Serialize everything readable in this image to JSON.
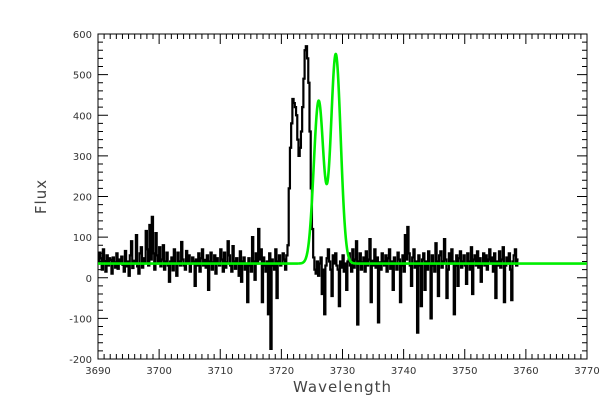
{
  "chart_data": {
    "type": "line",
    "xlabel": "Wavelength",
    "ylabel": "Flux",
    "xlim": [
      3690,
      3770
    ],
    "ylim": [
      -200,
      600
    ],
    "x_ticks": [
      "3690",
      "3700",
      "3710",
      "3720",
      "3730",
      "3740",
      "3750",
      "3760",
      "3770"
    ],
    "y_ticks": [
      "-200",
      "-100",
      "0",
      "100",
      "200",
      "300",
      "400",
      "500",
      "600"
    ],
    "x_minor_step": 1,
    "y_minor_step": 20,
    "grid": false,
    "legend": "none",
    "series": [
      {
        "style": "histogram-step",
        "color": "#000000",
        "x_start": 3690,
        "x_step": 0.2,
        "values": [
          35,
          62,
          48,
          20,
          70,
          41,
          15,
          55,
          30,
          48,
          44,
          10,
          50,
          38,
          25,
          60,
          22,
          45,
          35,
          52,
          32,
          15,
          66,
          28,
          40,
          5,
          55,
          90,
          24,
          42,
          38,
          105,
          28,
          10,
          60,
          75,
          25,
          48,
          40,
          115,
          70,
          30,
          130,
          45,
          150,
          60,
          20,
          110,
          55,
          35,
          75,
          28,
          45,
          80,
          20,
          40,
          62,
          30,
          -10,
          40,
          50,
          18,
          70,
          35,
          5,
          62,
          40,
          30,
          88,
          45,
          30,
          20,
          66,
          40,
          55,
          15,
          35,
          50,
          40,
          -20,
          45,
          30,
          60,
          15,
          48,
          70,
          30,
          44,
          25,
          55,
          -30,
          40,
          62,
          20,
          38,
          55,
          10,
          48,
          35,
          30,
          70,
          45,
          15,
          62,
          25,
          38,
          90,
          55,
          30,
          15,
          78,
          40,
          22,
          48,
          35,
          5,
          65,
          -10,
          40,
          50,
          20,
          35,
          -60,
          48,
          30,
          15,
          100,
          40,
          -5,
          60,
          35,
          120,
          45,
          70,
          -60,
          50,
          30,
          15,
          40,
          -90,
          60,
          -175,
          45,
          30,
          20,
          70,
          -50,
          40,
          55,
          30,
          35,
          60,
          45,
          20,
          55,
          80,
          220,
          320,
          380,
          440,
          430,
          420,
          400,
          340,
          300,
          320,
          360,
          420,
          490,
          560,
          570,
          540,
          480,
          360,
          220,
          120,
          50,
          20,
          10,
          40,
          5,
          35,
          50,
          -40,
          20,
          -90,
          30,
          48,
          70,
          40,
          20,
          -45,
          55,
          35,
          60,
          30,
          20,
          -70,
          40,
          25,
          55,
          15,
          35,
          -30,
          40,
          60,
          30,
          15,
          70,
          25,
          45,
          90,
          -115,
          40,
          60,
          20,
          38,
          50,
          15,
          65,
          30,
          45,
          95,
          -60,
          42,
          30,
          70,
          25,
          50,
          -110,
          38,
          20,
          60,
          40,
          30,
          55,
          15,
          48,
          70,
          22,
          40,
          -30,
          50,
          35,
          20,
          62,
          45,
          -60,
          30,
          55,
          15,
          105,
          45,
          125,
          60,
          30,
          -20,
          50,
          70,
          25,
          40,
          -135,
          55,
          30,
          -70,
          45,
          60,
          -30,
          40,
          20,
          65,
          35,
          -100,
          55,
          30,
          15,
          85,
          40,
          -45,
          55,
          65,
          25,
          40,
          95,
          45,
          -50,
          20,
          60,
          35,
          70,
          40,
          -90,
          30,
          55,
          -20,
          48,
          65,
          25,
          40,
          55,
          30,
          -15,
          60,
          40,
          20,
          75,
          -40,
          45,
          55,
          30,
          65,
          25,
          48,
          -10,
          35,
          60,
          30,
          55,
          20,
          45,
          70,
          35,
          50,
          15,
          60,
          -50,
          40,
          30,
          65,
          25,
          45,
          75,
          -60,
          30,
          50,
          35,
          60,
          20,
          -55,
          40,
          55,
          70,
          30,
          45
        ]
      },
      {
        "style": "fit",
        "color": "#00ee00",
        "continuum": 35,
        "components": [
          {
            "center": 3726.1,
            "amplitude": 400,
            "sigma": 0.8
          },
          {
            "center": 3728.9,
            "amplitude": 515,
            "sigma": 0.8
          }
        ]
      }
    ]
  }
}
